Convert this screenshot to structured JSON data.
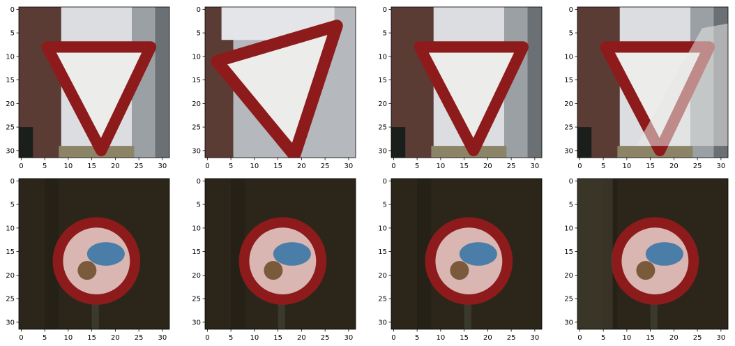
{
  "chart_data": [
    {
      "type": "image",
      "xlim": [
        -0.5,
        31.5
      ],
      "ylim": [
        31.5,
        -0.5
      ],
      "xticks": [
        0,
        5,
        10,
        15,
        20,
        25,
        30
      ],
      "yticks": [
        0,
        5,
        10,
        15,
        20,
        25,
        30
      ]
    },
    {
      "type": "image",
      "xlim": [
        -0.5,
        31.5
      ],
      "ylim": [
        31.5,
        -0.5
      ],
      "xticks": [
        0,
        5,
        10,
        15,
        20,
        25,
        30
      ],
      "yticks": [
        0,
        5,
        10,
        15,
        20,
        25,
        30
      ]
    },
    {
      "type": "image",
      "xlim": [
        -0.5,
        31.5
      ],
      "ylim": [
        31.5,
        -0.5
      ],
      "xticks": [
        0,
        5,
        10,
        15,
        20,
        25,
        30
      ],
      "yticks": [
        0,
        5,
        10,
        15,
        20,
        25,
        30
      ]
    },
    {
      "type": "image",
      "xlim": [
        -0.5,
        31.5
      ],
      "ylim": [
        31.5,
        -0.5
      ],
      "xticks": [
        0,
        5,
        10,
        15,
        20,
        25,
        30
      ],
      "yticks": [
        0,
        5,
        10,
        15,
        20,
        25,
        30
      ]
    },
    {
      "type": "image",
      "xlim": [
        -0.5,
        31.5
      ],
      "ylim": [
        31.5,
        -0.5
      ],
      "xticks": [
        0,
        5,
        10,
        15,
        20,
        25,
        30
      ],
      "yticks": [
        0,
        5,
        10,
        15,
        20,
        25,
        30
      ]
    },
    {
      "type": "image",
      "xlim": [
        -0.5,
        31.5
      ],
      "ylim": [
        31.5,
        -0.5
      ],
      "xticks": [
        0,
        5,
        10,
        15,
        20,
        25,
        30
      ],
      "yticks": [
        0,
        5,
        10,
        15,
        20,
        25,
        30
      ]
    },
    {
      "type": "image",
      "xlim": [
        -0.5,
        31.5
      ],
      "ylim": [
        31.5,
        -0.5
      ],
      "xticks": [
        0,
        5,
        10,
        15,
        20,
        25,
        30
      ],
      "yticks": [
        0,
        5,
        10,
        15,
        20,
        25,
        30
      ]
    },
    {
      "type": "image",
      "xlim": [
        -0.5,
        31.5
      ],
      "ylim": [
        31.5,
        -0.5
      ],
      "xticks": [
        0,
        5,
        10,
        15,
        20,
        25,
        30
      ],
      "yticks": [
        0,
        5,
        10,
        15,
        20,
        25,
        30
      ]
    }
  ]
}
